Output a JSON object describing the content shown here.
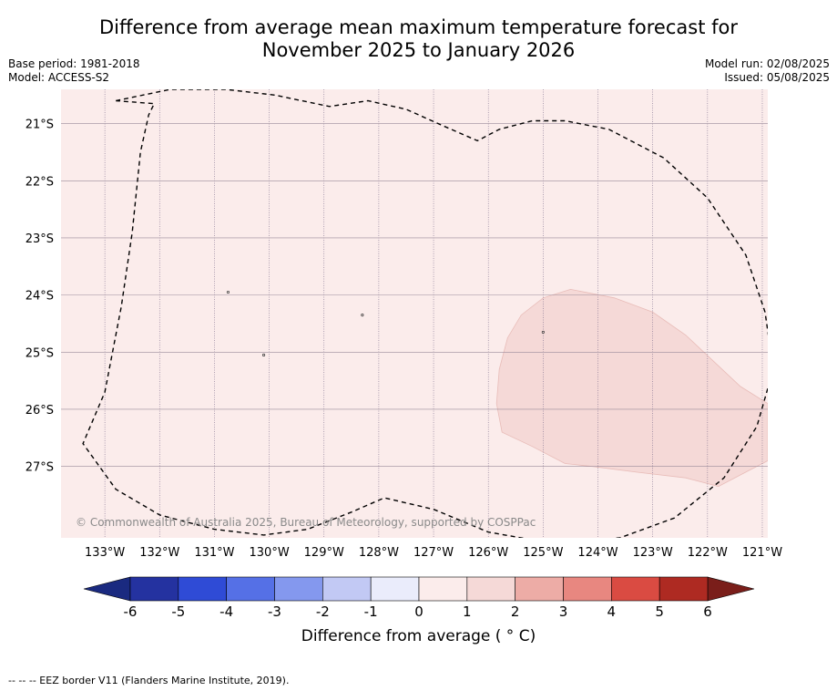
{
  "title": {
    "line1": "Difference from average mean maximum temperature forecast for",
    "line2": "November 2025 to January 2026"
  },
  "meta": {
    "base_period": "Base period: 1981-2018",
    "model": "Model: ACCESS-S2",
    "model_run": "Model run: 02/08/2025",
    "issued": "Issued: 05/08/2025"
  },
  "map": {
    "lon_range": [
      -133.8,
      -120.9
    ],
    "lat_range": [
      -28.25,
      -20.4
    ],
    "background_color": "#fbeceb",
    "region_color": "#f5d9d7",
    "lon_ticks": [
      {
        "value": -133,
        "label": "133°W"
      },
      {
        "value": -132,
        "label": "132°W"
      },
      {
        "value": -131,
        "label": "131°W"
      },
      {
        "value": -130,
        "label": "130°W"
      },
      {
        "value": -129,
        "label": "129°W"
      },
      {
        "value": -128,
        "label": "128°W"
      },
      {
        "value": -127,
        "label": "127°W"
      },
      {
        "value": -126,
        "label": "126°W"
      },
      {
        "value": -125,
        "label": "125°W"
      },
      {
        "value": -124,
        "label": "124°W"
      },
      {
        "value": -123,
        "label": "123°W"
      },
      {
        "value": -122,
        "label": "122°W"
      },
      {
        "value": -121,
        "label": "121°W"
      }
    ],
    "lat_ticks": [
      {
        "value": -21,
        "label": "21°S"
      },
      {
        "value": -22,
        "label": "22°S"
      },
      {
        "value": -23,
        "label": "23°S"
      },
      {
        "value": -24,
        "label": "24°S"
      },
      {
        "value": -25,
        "label": "25°S"
      },
      {
        "value": -26,
        "label": "26°S"
      },
      {
        "value": -27,
        "label": "27°S"
      }
    ],
    "eez_border": [
      [
        -132.8,
        -20.6
      ],
      [
        -131.8,
        -20.4
      ],
      [
        -130.8,
        -20.4
      ],
      [
        -129.9,
        -20.5
      ],
      [
        -128.9,
        -20.7
      ],
      [
        -128.2,
        -20.6
      ],
      [
        -127.5,
        -20.75
      ],
      [
        -126.8,
        -21.05
      ],
      [
        -126.2,
        -21.3
      ],
      [
        -125.8,
        -21.1
      ],
      [
        -125.2,
        -20.95
      ],
      [
        -124.6,
        -20.95
      ],
      [
        -123.8,
        -21.1
      ],
      [
        -122.8,
        -21.6
      ],
      [
        -122.0,
        -22.3
      ],
      [
        -121.3,
        -23.3
      ],
      [
        -120.95,
        -24.3
      ],
      [
        -120.8,
        -25.3
      ],
      [
        -121.1,
        -26.3
      ],
      [
        -121.7,
        -27.2
      ],
      [
        -122.6,
        -27.9
      ],
      [
        -123.6,
        -28.25
      ],
      [
        -124.8,
        -28.35
      ],
      [
        -126.0,
        -28.15
      ],
      [
        -127.0,
        -27.75
      ],
      [
        -127.9,
        -27.55
      ],
      [
        -128.5,
        -27.8
      ],
      [
        -129.3,
        -28.1
      ],
      [
        -130.1,
        -28.2
      ],
      [
        -131.0,
        -28.1
      ],
      [
        -132.0,
        -27.85
      ],
      [
        -132.8,
        -27.4
      ],
      [
        -133.4,
        -26.6
      ],
      [
        -133.0,
        -25.7
      ],
      [
        -132.7,
        -24.2
      ],
      [
        -132.5,
        -22.9
      ],
      [
        -132.35,
        -21.5
      ],
      [
        -132.2,
        -20.85
      ],
      [
        -132.1,
        -20.65
      ]
    ],
    "warm_region": [
      [
        -124.5,
        -23.9
      ],
      [
        -123.7,
        -24.05
      ],
      [
        -123.0,
        -24.3
      ],
      [
        -122.4,
        -24.7
      ],
      [
        -121.9,
        -25.15
      ],
      [
        -121.4,
        -25.6
      ],
      [
        -120.9,
        -25.9
      ],
      [
        -120.9,
        -26.9
      ],
      [
        -121.3,
        -27.1
      ],
      [
        -121.8,
        -27.35
      ],
      [
        -122.4,
        -27.2
      ],
      [
        -123.3,
        -27.1
      ],
      [
        -124.1,
        -27.0
      ],
      [
        -124.6,
        -26.95
      ],
      [
        -125.2,
        -26.65
      ],
      [
        -125.75,
        -26.4
      ],
      [
        -125.85,
        -25.9
      ],
      [
        -125.8,
        -25.3
      ],
      [
        -125.65,
        -24.75
      ],
      [
        -125.4,
        -24.35
      ],
      [
        -125.0,
        -24.05
      ]
    ],
    "copyright": "© Commonwealth of Australia 2025, Bureau of Meteorology, supported by COSPPac"
  },
  "colorbar": {
    "labels": [
      "-6",
      "-5",
      "-4",
      "-3",
      "-2",
      "-1",
      "0",
      "1",
      "2",
      "3",
      "4",
      "5",
      "6"
    ],
    "colors": [
      "#2432a0",
      "#2f4bd6",
      "#5570e6",
      "#8498ee",
      "#c2c9f4",
      "#eaecfb",
      "#fbeceb",
      "#f5d9d7",
      "#edaca6",
      "#e88780",
      "#da4b42",
      "#ae2a22"
    ],
    "min_color": "#1a2a80",
    "max_color": "#7a1e1a",
    "title": "Difference from average ( ° C)"
  },
  "footer": "--  --  -- EEZ border V11 (Flanders Marine Institute, 2019)."
}
